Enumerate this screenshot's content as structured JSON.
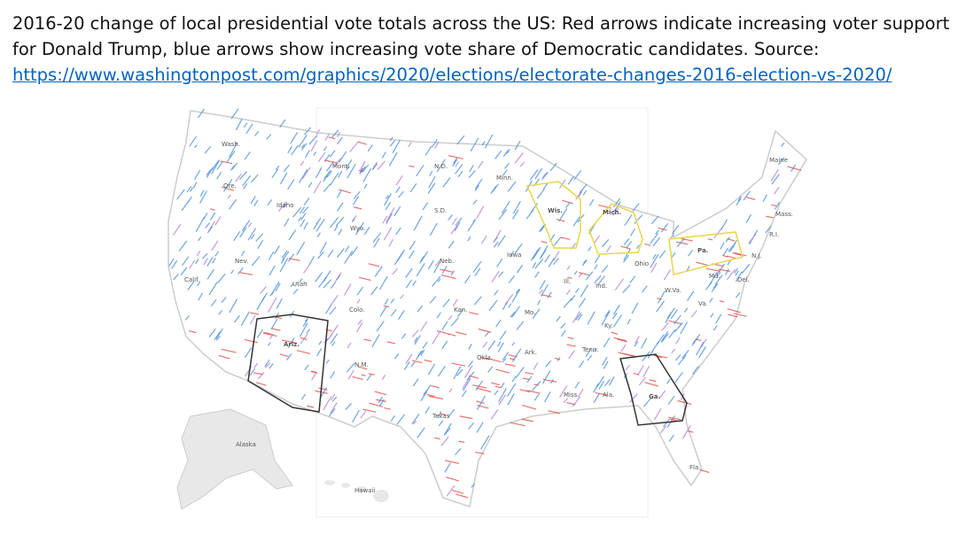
{
  "caption": {
    "text": "2016-20 change of local presidential vote totals across the US: Red arrows indicate increasing voter support for Donald Trump, blue arrows show increasing vote share of Democratic candidates. Source:",
    "link": "https://www.washingtonpost.com/graphics/2020/elections/electorate-changes-2016-election-vs-2020/"
  },
  "map": {
    "labels": [
      "Wash.",
      "Ore.",
      "Idaho",
      "Mont.",
      "Wyo.",
      "Nev.",
      "Calif.",
      "Utah",
      "Colo.",
      "Ariz.",
      "N.M.",
      "N.D.",
      "S.D.",
      "Neb.",
      "Kan.",
      "Okla.",
      "Texas",
      "Minn.",
      "Iowa",
      "Mo.",
      "Ark.",
      "Wis.",
      "Mich.",
      "Ill.",
      "Ind.",
      "Ohio",
      "Ky.",
      "Tenn.",
      "Miss.",
      "Ala.",
      "Ga.",
      "Fla.",
      "Va.",
      "W.Va.",
      "Pa.",
      "Maine",
      "Mass.",
      "R.I.",
      "N.J.",
      "Md.",
      "Del.",
      "Alaska",
      "Hawaii"
    ]
  }
}
